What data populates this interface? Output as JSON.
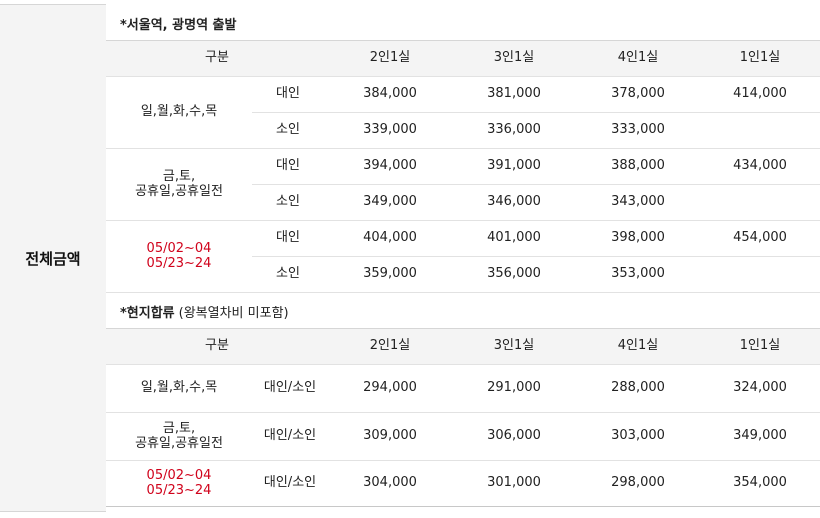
{
  "left_label": "전체금액",
  "section1": {
    "title": "*서울역, 광명역 출발",
    "header": [
      "구분",
      "2인1실",
      "3인1실",
      "4인1실",
      "1인1실"
    ],
    "groups": [
      {
        "label_lines": [
          "일,월,화,수,목"
        ],
        "red": false,
        "rows": [
          {
            "age": "대인",
            "v2": "384,000",
            "v3": "381,000",
            "v4": "378,000",
            "v1": "414,000"
          },
          {
            "age": "소인",
            "v2": "339,000",
            "v3": "336,000",
            "v4": "333,000",
            "v1": ""
          }
        ]
      },
      {
        "label_lines": [
          "금,토,",
          "공휴일,공휴일전"
        ],
        "red": false,
        "rows": [
          {
            "age": "대인",
            "v2": "394,000",
            "v3": "391,000",
            "v4": "388,000",
            "v1": "434,000"
          },
          {
            "age": "소인",
            "v2": "349,000",
            "v3": "346,000",
            "v4": "343,000",
            "v1": ""
          }
        ]
      },
      {
        "label_lines": [
          "05/02~04",
          "05/23~24"
        ],
        "red": true,
        "rows": [
          {
            "age": "대인",
            "v2": "404,000",
            "v3": "401,000",
            "v4": "398,000",
            "v1": "454,000"
          },
          {
            "age": "소인",
            "v2": "359,000",
            "v3": "356,000",
            "v4": "353,000",
            "v1": ""
          }
        ]
      }
    ]
  },
  "section2": {
    "title": "*현지합류",
    "note": "(왕복열차비 미포함)",
    "header": [
      "구분",
      "2인1실",
      "3인1실",
      "4인1실",
      "1인1실"
    ],
    "rows": [
      {
        "label_lines": [
          "일,월,화,수,목"
        ],
        "red": false,
        "age": "대인/소인",
        "v2": "294,000",
        "v3": "291,000",
        "v4": "288,000",
        "v1": "324,000"
      },
      {
        "label_lines": [
          "금,토,",
          "공휴일,공휴일전"
        ],
        "red": false,
        "age": "대인/소인",
        "v2": "309,000",
        "v3": "306,000",
        "v4": "303,000",
        "v1": "349,000"
      },
      {
        "label_lines": [
          "05/02~04",
          "05/23~24"
        ],
        "red": true,
        "age": "대인/소인",
        "v2": "304,000",
        "v3": "301,000",
        "v4": "298,000",
        "v1": "354,000"
      }
    ]
  }
}
